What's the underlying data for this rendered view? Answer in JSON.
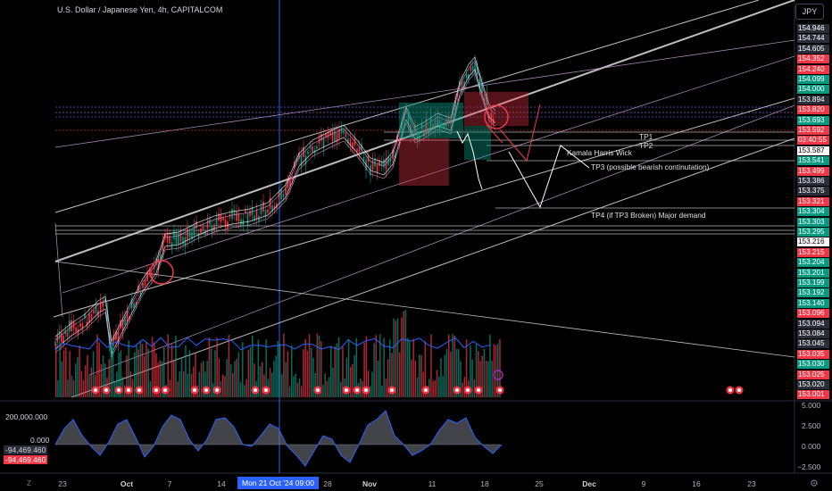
{
  "header": {
    "title": "U.S. Dollar / Japanese Yen, 4h, CAPITALCOM",
    "currency": "JPY"
  },
  "price_axis": [
    {
      "label": "154.946",
      "bg": "#2a2e39"
    },
    {
      "label": "154.744",
      "bg": "#2a2e39"
    },
    {
      "label": "154.605",
      "bg": "#2a2e39"
    },
    {
      "label": "154.352",
      "bg": "#f23645"
    },
    {
      "label": "154.240",
      "bg": "#f23645"
    },
    {
      "label": "154.099",
      "bg": "#089981"
    },
    {
      "label": "154.000",
      "bg": "#089981"
    },
    {
      "label": "153.894",
      "bg": "#2a2e39"
    },
    {
      "label": "153.820",
      "bg": "#f23645"
    },
    {
      "label": "153.693",
      "bg": "#089981"
    },
    {
      "label": "153.592",
      "bg": "#f23645"
    },
    {
      "label": "03:40:55",
      "bg": "#f23645"
    },
    {
      "label": "153.587",
      "bg": "#ffffff",
      "color": "#000"
    },
    {
      "label": "153.541",
      "bg": "#089981"
    },
    {
      "label": "153.499",
      "bg": "#f23645"
    },
    {
      "label": "153.386",
      "bg": "#2a2e39"
    },
    {
      "label": "153.375",
      "bg": "#2a2e39"
    },
    {
      "label": "153.321",
      "bg": "#f23645"
    },
    {
      "label": "153.304",
      "bg": "#089981"
    },
    {
      "label": "153.303",
      "bg": "#089981"
    },
    {
      "label": "153.295",
      "bg": "#089981"
    },
    {
      "label": "153.216",
      "bg": "#ffffff",
      "color": "#000"
    },
    {
      "label": "153.215",
      "bg": "#f23645"
    },
    {
      "label": "153.204",
      "bg": "#089981"
    },
    {
      "label": "153.201",
      "bg": "#089981"
    },
    {
      "label": "153.199",
      "bg": "#089981"
    },
    {
      "label": "153.192",
      "bg": "#089981"
    },
    {
      "label": "153.140",
      "bg": "#089981"
    },
    {
      "label": "153.096",
      "bg": "#f23645"
    },
    {
      "label": "153.094",
      "bg": "#2a2e39"
    },
    {
      "label": "153.084",
      "bg": "#2a2e39"
    },
    {
      "label": "153.045",
      "bg": "#2a2e39"
    },
    {
      "label": "153.035",
      "bg": "#f23645"
    },
    {
      "label": "153.030",
      "bg": "#089981"
    },
    {
      "label": "153.025",
      "bg": "#f23645"
    },
    {
      "label": "153.020",
      "bg": "#2a2e39"
    },
    {
      "label": "153.001",
      "bg": "#f23645"
    }
  ],
  "oscillator": {
    "left_scale": "200,000.000",
    "left_zero": "0.000",
    "left_value_1": "-94,469.460",
    "left_value_2": "-94,469.460",
    "right_ticks": [
      "5.000",
      "2.500",
      "0.000",
      "−2.500"
    ]
  },
  "annotations": {
    "tp1": "TP1",
    "tp2": "TP2",
    "kamala": "Kamala Harris Wick",
    "tp3": "TP3 (possible bearish continutation)",
    "tp4": "TP4 (if TP3 Broken) Major demand"
  },
  "time_axis": [
    {
      "label": "23",
      "bold": false
    },
    {
      "label": "Oct",
      "bold": true
    },
    {
      "label": "7",
      "bold": false
    },
    {
      "label": "14",
      "bold": false
    },
    {
      "label": "28",
      "bold": false
    },
    {
      "label": "Nov",
      "bold": true
    },
    {
      "label": "11",
      "bold": false
    },
    {
      "label": "18",
      "bold": false
    },
    {
      "label": "25",
      "bold": false
    },
    {
      "label": "Dec",
      "bold": true
    },
    {
      "label": "9",
      "bold": false
    },
    {
      "label": "16",
      "bold": false
    },
    {
      "label": "23",
      "bold": false
    }
  ],
  "cursor_date": "Mon 21 Oct '24   09:00",
  "colors": {
    "up": "#089981",
    "down": "#f23645",
    "channel": "#e0e0e0",
    "channel_inner": "#c39bd3",
    "cursor": "#2962ff"
  }
}
